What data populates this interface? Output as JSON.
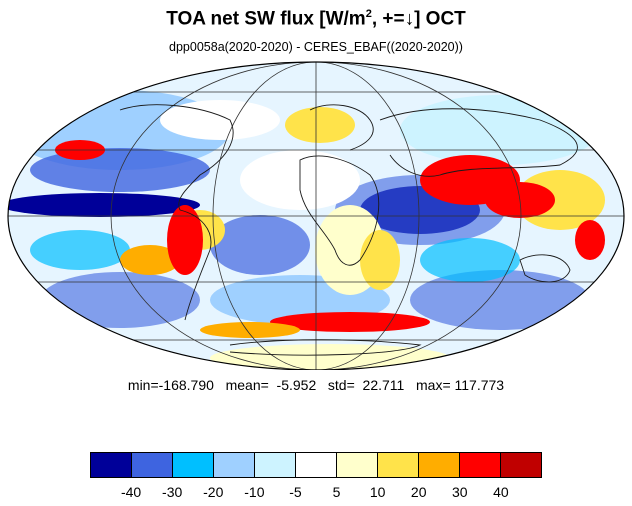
{
  "title": {
    "prefix": "TOA net SW flux [W/m",
    "superscript": "2",
    "suffix": ", +=↓]  OCT"
  },
  "subtitle": "dpp0058a(2020-2020) - CERES_EBAF((2020-2020))",
  "stats": {
    "text": "min=-168.790   mean=  -5.952   std=  22.711   max= 117.773",
    "min": -168.79,
    "mean": -5.952,
    "std": 22.711,
    "max": 117.773
  },
  "map": {
    "projection": "Mollweide",
    "field": "TOA net SW flux difference",
    "ocean_background": "#ffffff",
    "coastline_color": "#1a1a1a"
  },
  "colorbar": {
    "colors": [
      "#000099",
      "#3e64e0",
      "#00bfff",
      "#9fd0ff",
      "#cdf3ff",
      "#ffffff",
      "#ffffcc",
      "#ffe34a",
      "#ffad00",
      "#ff0000",
      "#c00000"
    ],
    "labels": [
      "-40",
      "-30",
      "-20",
      "-10",
      "-5",
      "5",
      "10",
      "20",
      "30",
      "40"
    ]
  }
}
